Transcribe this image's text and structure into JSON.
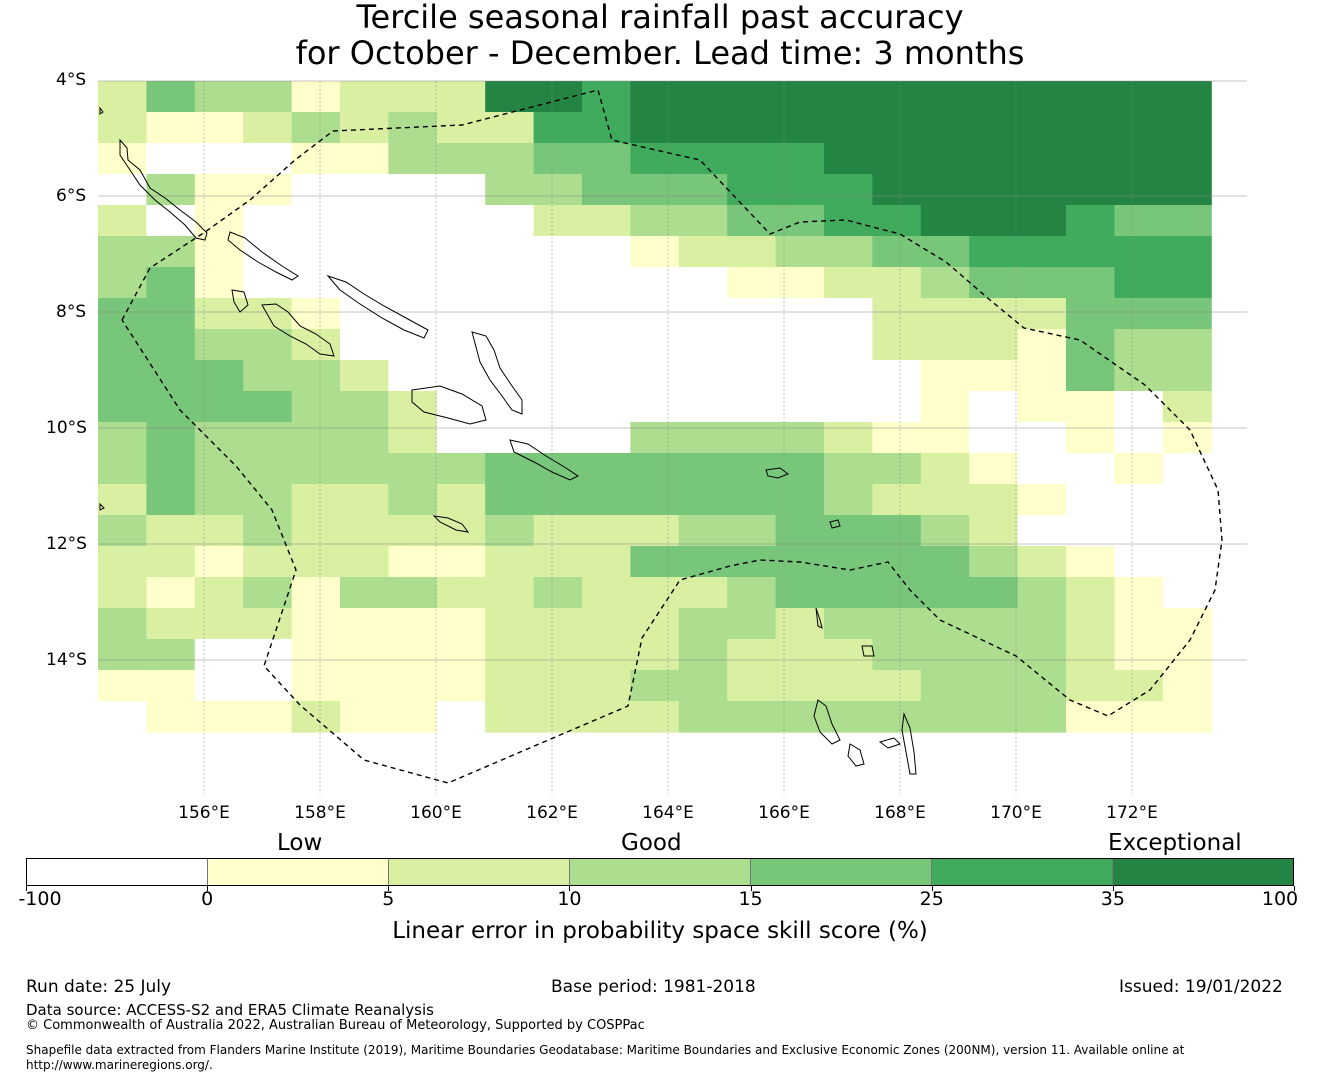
{
  "title": {
    "line1": "Tercile seasonal rainfall past accuracy",
    "line2": "for October - December. Lead time: 3 months"
  },
  "map": {
    "lat_labels": [
      "4°S",
      "6°S",
      "8°S",
      "10°S",
      "12°S",
      "14°S"
    ],
    "lon_labels": [
      "156°E",
      "158°E",
      "160°E",
      "162°E",
      "164°E",
      "166°E",
      "168°E",
      "170°E",
      "172°E"
    ],
    "grid": [
      "24331222665666666666666",
      "21123232255666666666666",
      "10001133344555566666666",
      "03110000334445556666666",
      "20100000022334455666544",
      "33100000000122334455555",
      "34100000000001122344455",
      "44221000000000002222444",
      "44332000000000002221433",
      "44433200000000000111433",
      "44443320000000000101102",
      "34333320000333321100101",
      "34333333444444433210010",
      "24332232444444432221000",
      "32232222322233444320000",
      "22122211222444444432100",
      "21231332232223444443210",
      "32221111222233233333211",
      "33001111222232223333211",
      "11001111222332222333221",
      "01112110222233333333111"
    ],
    "palette": [
      "#ffffff",
      "#ffffcc",
      "#d9f0a3",
      "#addd8e",
      "#78c679",
      "#41ab5d",
      "#238443"
    ]
  },
  "legend": {
    "categories": [
      "Low",
      "Good",
      "Exceptional"
    ],
    "colors": [
      "#ffffff",
      "#ffffcc",
      "#d9f0a3",
      "#addd8e",
      "#78c679",
      "#41ab5d",
      "#238443"
    ],
    "ticks": [
      "-100",
      "0",
      "5",
      "10",
      "15",
      "25",
      "35",
      "100"
    ],
    "title": "Linear error in probability space skill score (%)"
  },
  "footer": {
    "run_date": "Run date: 25 July",
    "base_period": "Base period: 1981-2018",
    "issued": "Issued: 19/01/2022",
    "data_source": "Data source: ACCESS-S2 and ERA5 Climate Reanalysis",
    "copyright": "© Commonwealth of Australia 2022, Australian Bureau of Meteorology, Supported by COSPPac",
    "shapefile_line1": "Shapefile data extracted from Flanders Marine Institute (2019), Maritime Boundaries Geodatabase: Maritime Boundaries and Exclusive Economic Zones (200NM), version 11. Available online at",
    "shapefile_line2": "http://www.marineregions.org/."
  }
}
